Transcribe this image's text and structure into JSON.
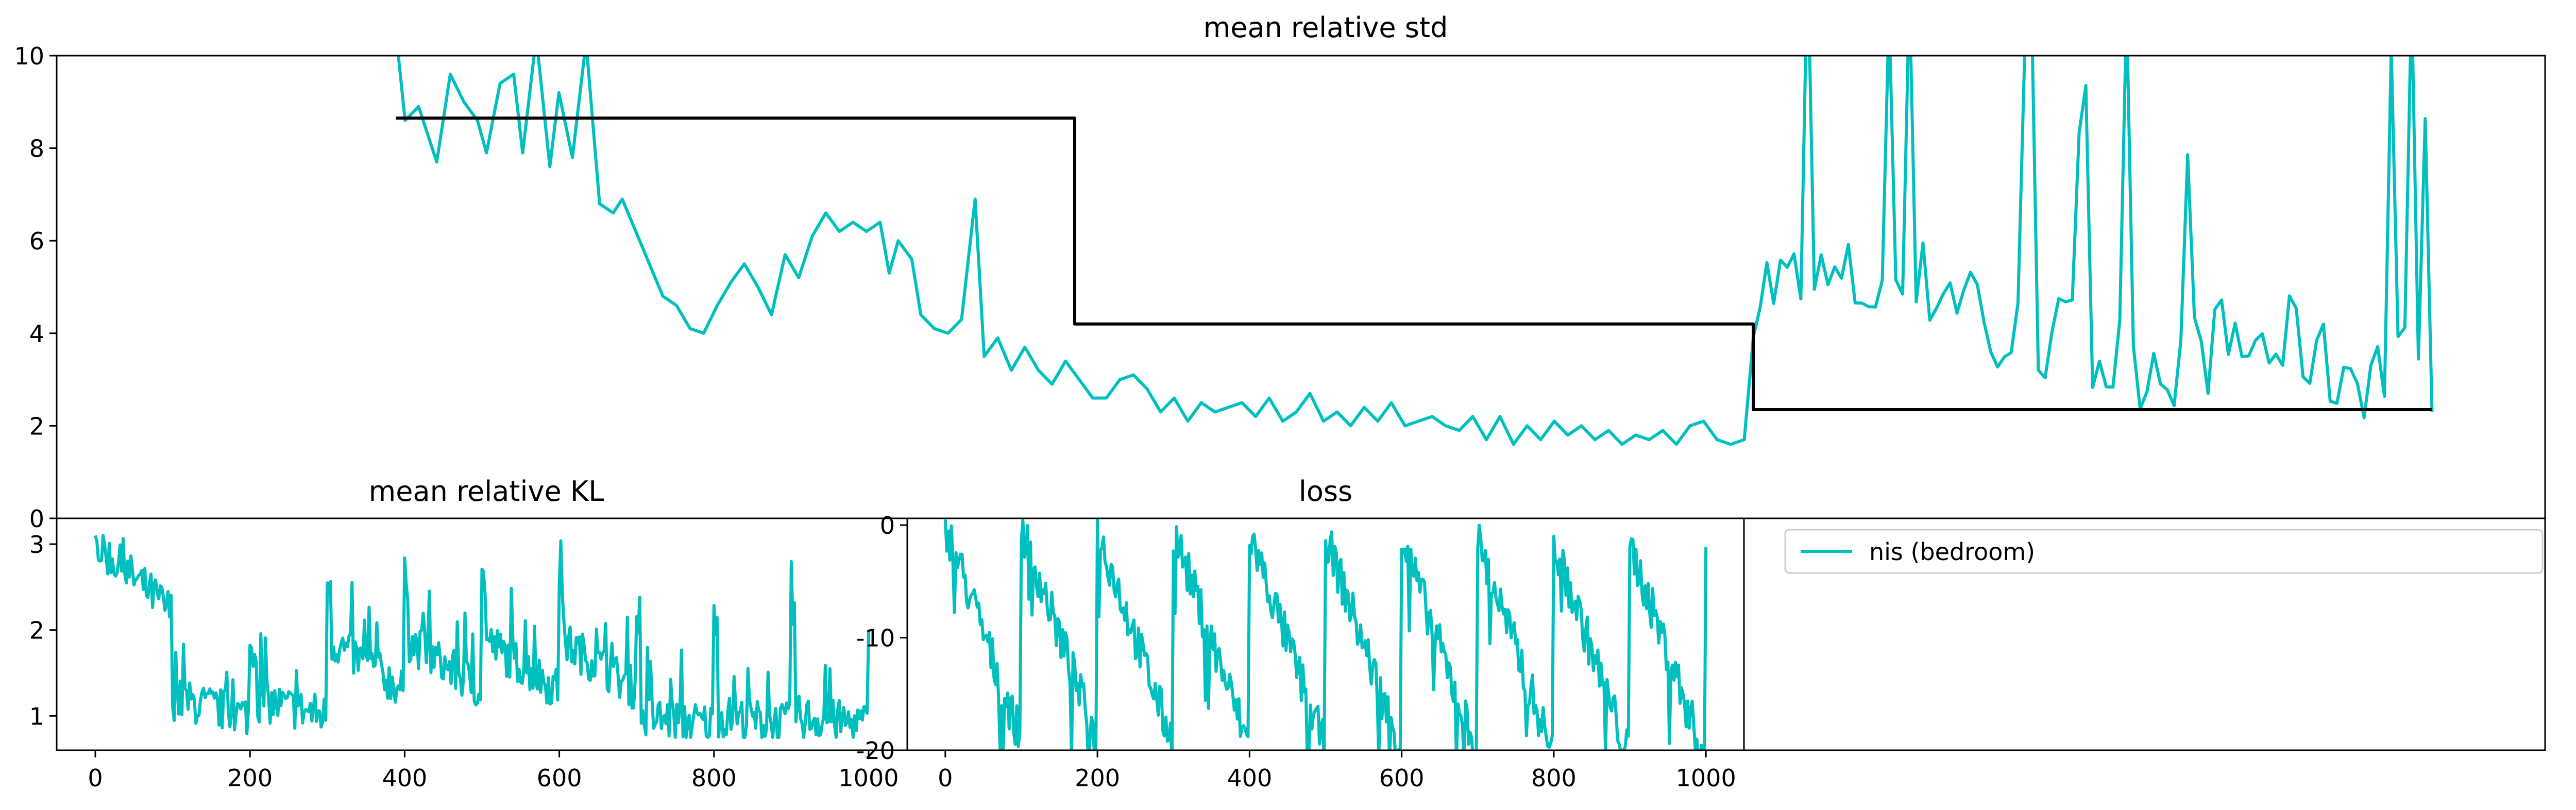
{
  "colors": {
    "series": "#00bfbf",
    "reference": "#000000",
    "axes": "#000000"
  },
  "chart_data": [
    {
      "type": "line",
      "title": "mean relative std",
      "xlabel": "",
      "ylabel": "",
      "xlim": [
        -50,
        1050
      ],
      "ylim": [
        0,
        10
      ],
      "yticks": [
        0,
        2,
        4,
        6,
        8,
        10
      ],
      "xticks": [],
      "grid": false,
      "series": [
        {
          "style": "cyan",
          "points": [
            [
              100,
              10.5
            ],
            [
              104,
              8.6
            ],
            [
              110,
              8.9
            ],
            [
              114,
              8.3
            ],
            [
              118,
              7.7
            ],
            [
              124,
              9.6
            ],
            [
              130,
              9.0
            ],
            [
              136,
              8.6
            ],
            [
              140,
              7.9
            ],
            [
              146,
              9.4
            ],
            [
              152,
              9.6
            ],
            [
              156,
              7.9
            ],
            [
              162,
              10.4
            ],
            [
              168,
              7.6
            ],
            [
              172,
              9.2
            ],
            [
              178,
              7.8
            ],
            [
              184,
              10.3
            ],
            [
              190,
              6.8
            ],
            [
              196,
              6.6
            ],
            [
              200,
              6.9
            ],
            [
              206,
              6.2
            ],
            [
              212,
              5.5
            ],
            [
              218,
              4.8
            ],
            [
              224,
              4.6
            ],
            [
              230,
              4.1
            ],
            [
              236,
              4.0
            ],
            [
              242,
              4.6
            ],
            [
              248,
              5.1
            ],
            [
              254,
              5.5
            ],
            [
              260,
              5.0
            ],
            [
              266,
              4.4
            ],
            [
              272,
              5.7
            ],
            [
              278,
              5.2
            ],
            [
              284,
              6.1
            ],
            [
              290,
              6.6
            ],
            [
              296,
              6.2
            ],
            [
              302,
              6.4
            ],
            [
              308,
              6.2
            ],
            [
              314,
              6.4
            ],
            [
              318,
              5.3
            ],
            [
              322,
              6.0
            ],
            [
              328,
              5.6
            ],
            [
              332,
              4.4
            ],
            [
              338,
              4.1
            ],
            [
              344,
              4.0
            ],
            [
              350,
              4.3
            ],
            [
              356,
              6.9
            ],
            [
              360,
              3.5
            ],
            [
              366,
              3.9
            ],
            [
              372,
              3.2
            ],
            [
              378,
              3.7
            ],
            [
              384,
              3.2
            ],
            [
              390,
              2.9
            ],
            [
              396,
              3.4
            ],
            [
              402,
              3.0
            ],
            [
              408,
              2.6
            ],
            [
              414,
              2.6
            ],
            [
              420,
              3.0
            ],
            [
              426,
              3.1
            ],
            [
              432,
              2.8
            ],
            [
              438,
              2.3
            ],
            [
              444,
              2.6
            ],
            [
              450,
              2.1
            ],
            [
              456,
              2.5
            ],
            [
              462,
              2.3
            ],
            [
              468,
              2.4
            ],
            [
              474,
              2.5
            ],
            [
              480,
              2.2
            ],
            [
              486,
              2.6
            ],
            [
              492,
              2.1
            ],
            [
              498,
              2.3
            ],
            [
              504,
              2.7
            ],
            [
              510,
              2.1
            ],
            [
              516,
              2.3
            ],
            [
              522,
              2.0
            ],
            [
              528,
              2.4
            ],
            [
              534,
              2.1
            ],
            [
              540,
              2.5
            ],
            [
              546,
              2.0
            ],
            [
              552,
              2.1
            ],
            [
              558,
              2.2
            ],
            [
              564,
              2.0
            ],
            [
              570,
              1.9
            ],
            [
              576,
              2.2
            ],
            [
              582,
              1.7
            ],
            [
              588,
              2.2
            ],
            [
              594,
              1.6
            ],
            [
              600,
              2.0
            ],
            [
              606,
              1.7
            ],
            [
              612,
              2.1
            ],
            [
              618,
              1.8
            ],
            [
              624,
              2.0
            ],
            [
              630,
              1.7
            ],
            [
              636,
              1.9
            ],
            [
              642,
              1.6
            ],
            [
              648,
              1.8
            ],
            [
              654,
              1.7
            ],
            [
              660,
              1.9
            ],
            [
              666,
              1.6
            ],
            [
              672,
              2.0
            ],
            [
              678,
              2.1
            ],
            [
              684,
              1.7
            ],
            [
              690,
              1.6
            ],
            [
              696,
              1.7
            ]
          ]
        },
        {
          "style": "black_step",
          "points": [
            [
              100,
              8.65
            ],
            [
              400,
              8.65
            ],
            [
              400,
              4.2
            ],
            [
              700,
              4.2
            ],
            [
              700,
              2.35
            ],
            [
              1000,
              2.35
            ]
          ]
        }
      ]
    },
    {
      "type": "line",
      "title": "mean relative KL",
      "xlim": [
        -50,
        1050
      ],
      "ylim": [
        0.6,
        3.3
      ],
      "yticks": [
        1,
        2,
        3
      ],
      "xticks": [
        0,
        200,
        400,
        600,
        800,
        1000
      ],
      "series": [
        {
          "style": "cyan",
          "points": []
        }
      ]
    },
    {
      "type": "line",
      "title": "loss",
      "xlim": [
        -50,
        1050
      ],
      "ylim": [
        -20,
        0.6
      ],
      "yticks": [
        0,
        -10,
        -20
      ],
      "xticks": [
        0,
        200,
        400,
        600,
        800,
        1000
      ],
      "series": [
        {
          "style": "cyan",
          "points": []
        }
      ]
    }
  ],
  "legend": {
    "label": "nis (bedroom)",
    "placement": "top-left"
  }
}
